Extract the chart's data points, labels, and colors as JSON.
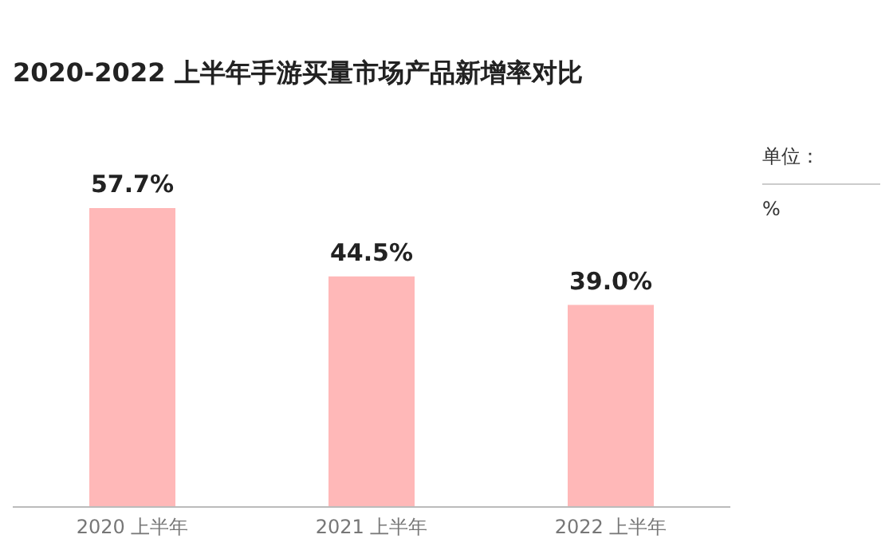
{
  "chart_data": {
    "type": "bar",
    "title": "2020-2022 上半年手游买量市场产品新增率对比",
    "categories": [
      "2020 上半年",
      "2021 上半年",
      "2022 上半年"
    ],
    "values": [
      57.7,
      44.5,
      39.0
    ],
    "color": "#ffb8b8",
    "data_labels": true,
    "value_labels": [
      "57.7%",
      "44.5%",
      "39.0%"
    ],
    "tick_labels": "x",
    "grid": false,
    "legend": false,
    "annotations": [
      "单位：",
      "%"
    ]
  }
}
